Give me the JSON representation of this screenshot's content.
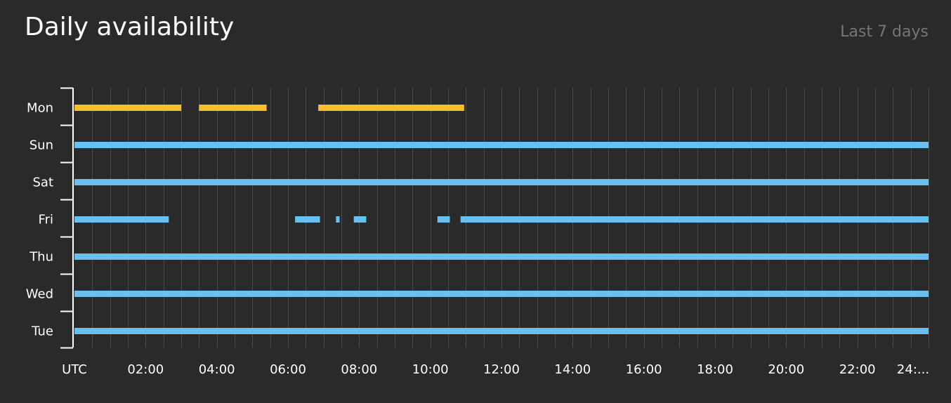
{
  "header": {
    "title": "Daily availability",
    "range_label": "Last 7 days"
  },
  "colors": {
    "background": "#2a2a2a",
    "today": "#f7bd2e",
    "past": "#69bfee",
    "grid": "#4a4a4a",
    "axis": "#ffffff"
  },
  "chart_data": {
    "type": "timeline",
    "x_unit": "hours UTC",
    "x_range": [
      0,
      24
    ],
    "x_ticks": [
      {
        "hour": 0,
        "label": "UTC"
      },
      {
        "hour": 2,
        "label": "02:00"
      },
      {
        "hour": 4,
        "label": "04:00"
      },
      {
        "hour": 6,
        "label": "06:00"
      },
      {
        "hour": 8,
        "label": "08:00"
      },
      {
        "hour": 10,
        "label": "10:00"
      },
      {
        "hour": 12,
        "label": "12:00"
      },
      {
        "hour": 14,
        "label": "14:00"
      },
      {
        "hour": 16,
        "label": "16:00"
      },
      {
        "hour": 18,
        "label": "18:00"
      },
      {
        "hour": 20,
        "label": "20:00"
      },
      {
        "hour": 22,
        "label": "22:00"
      },
      {
        "hour": 24,
        "label": "24:..."
      }
    ],
    "grid_step_hours": 0.5,
    "grid": true,
    "days": [
      {
        "label": "Mon",
        "color_key": "today",
        "intervals": [
          [
            0,
            3.0
          ],
          [
            3.5,
            5.4
          ],
          [
            6.85,
            10.95
          ]
        ]
      },
      {
        "label": "Sun",
        "color_key": "past",
        "intervals": [
          [
            0,
            24
          ]
        ]
      },
      {
        "label": "Sat",
        "color_key": "past",
        "intervals": [
          [
            0,
            24
          ]
        ]
      },
      {
        "label": "Fri",
        "color_key": "past",
        "intervals": [
          [
            0,
            2.65
          ],
          [
            6.2,
            6.9
          ],
          [
            7.35,
            7.45
          ],
          [
            7.85,
            8.2
          ],
          [
            10.2,
            10.55
          ],
          [
            10.85,
            24
          ]
        ]
      },
      {
        "label": "Thu",
        "color_key": "past",
        "intervals": [
          [
            0,
            24
          ]
        ]
      },
      {
        "label": "Wed",
        "color_key": "past",
        "intervals": [
          [
            0,
            24
          ]
        ]
      },
      {
        "label": "Tue",
        "color_key": "past",
        "intervals": [
          [
            0,
            24
          ]
        ]
      }
    ]
  }
}
